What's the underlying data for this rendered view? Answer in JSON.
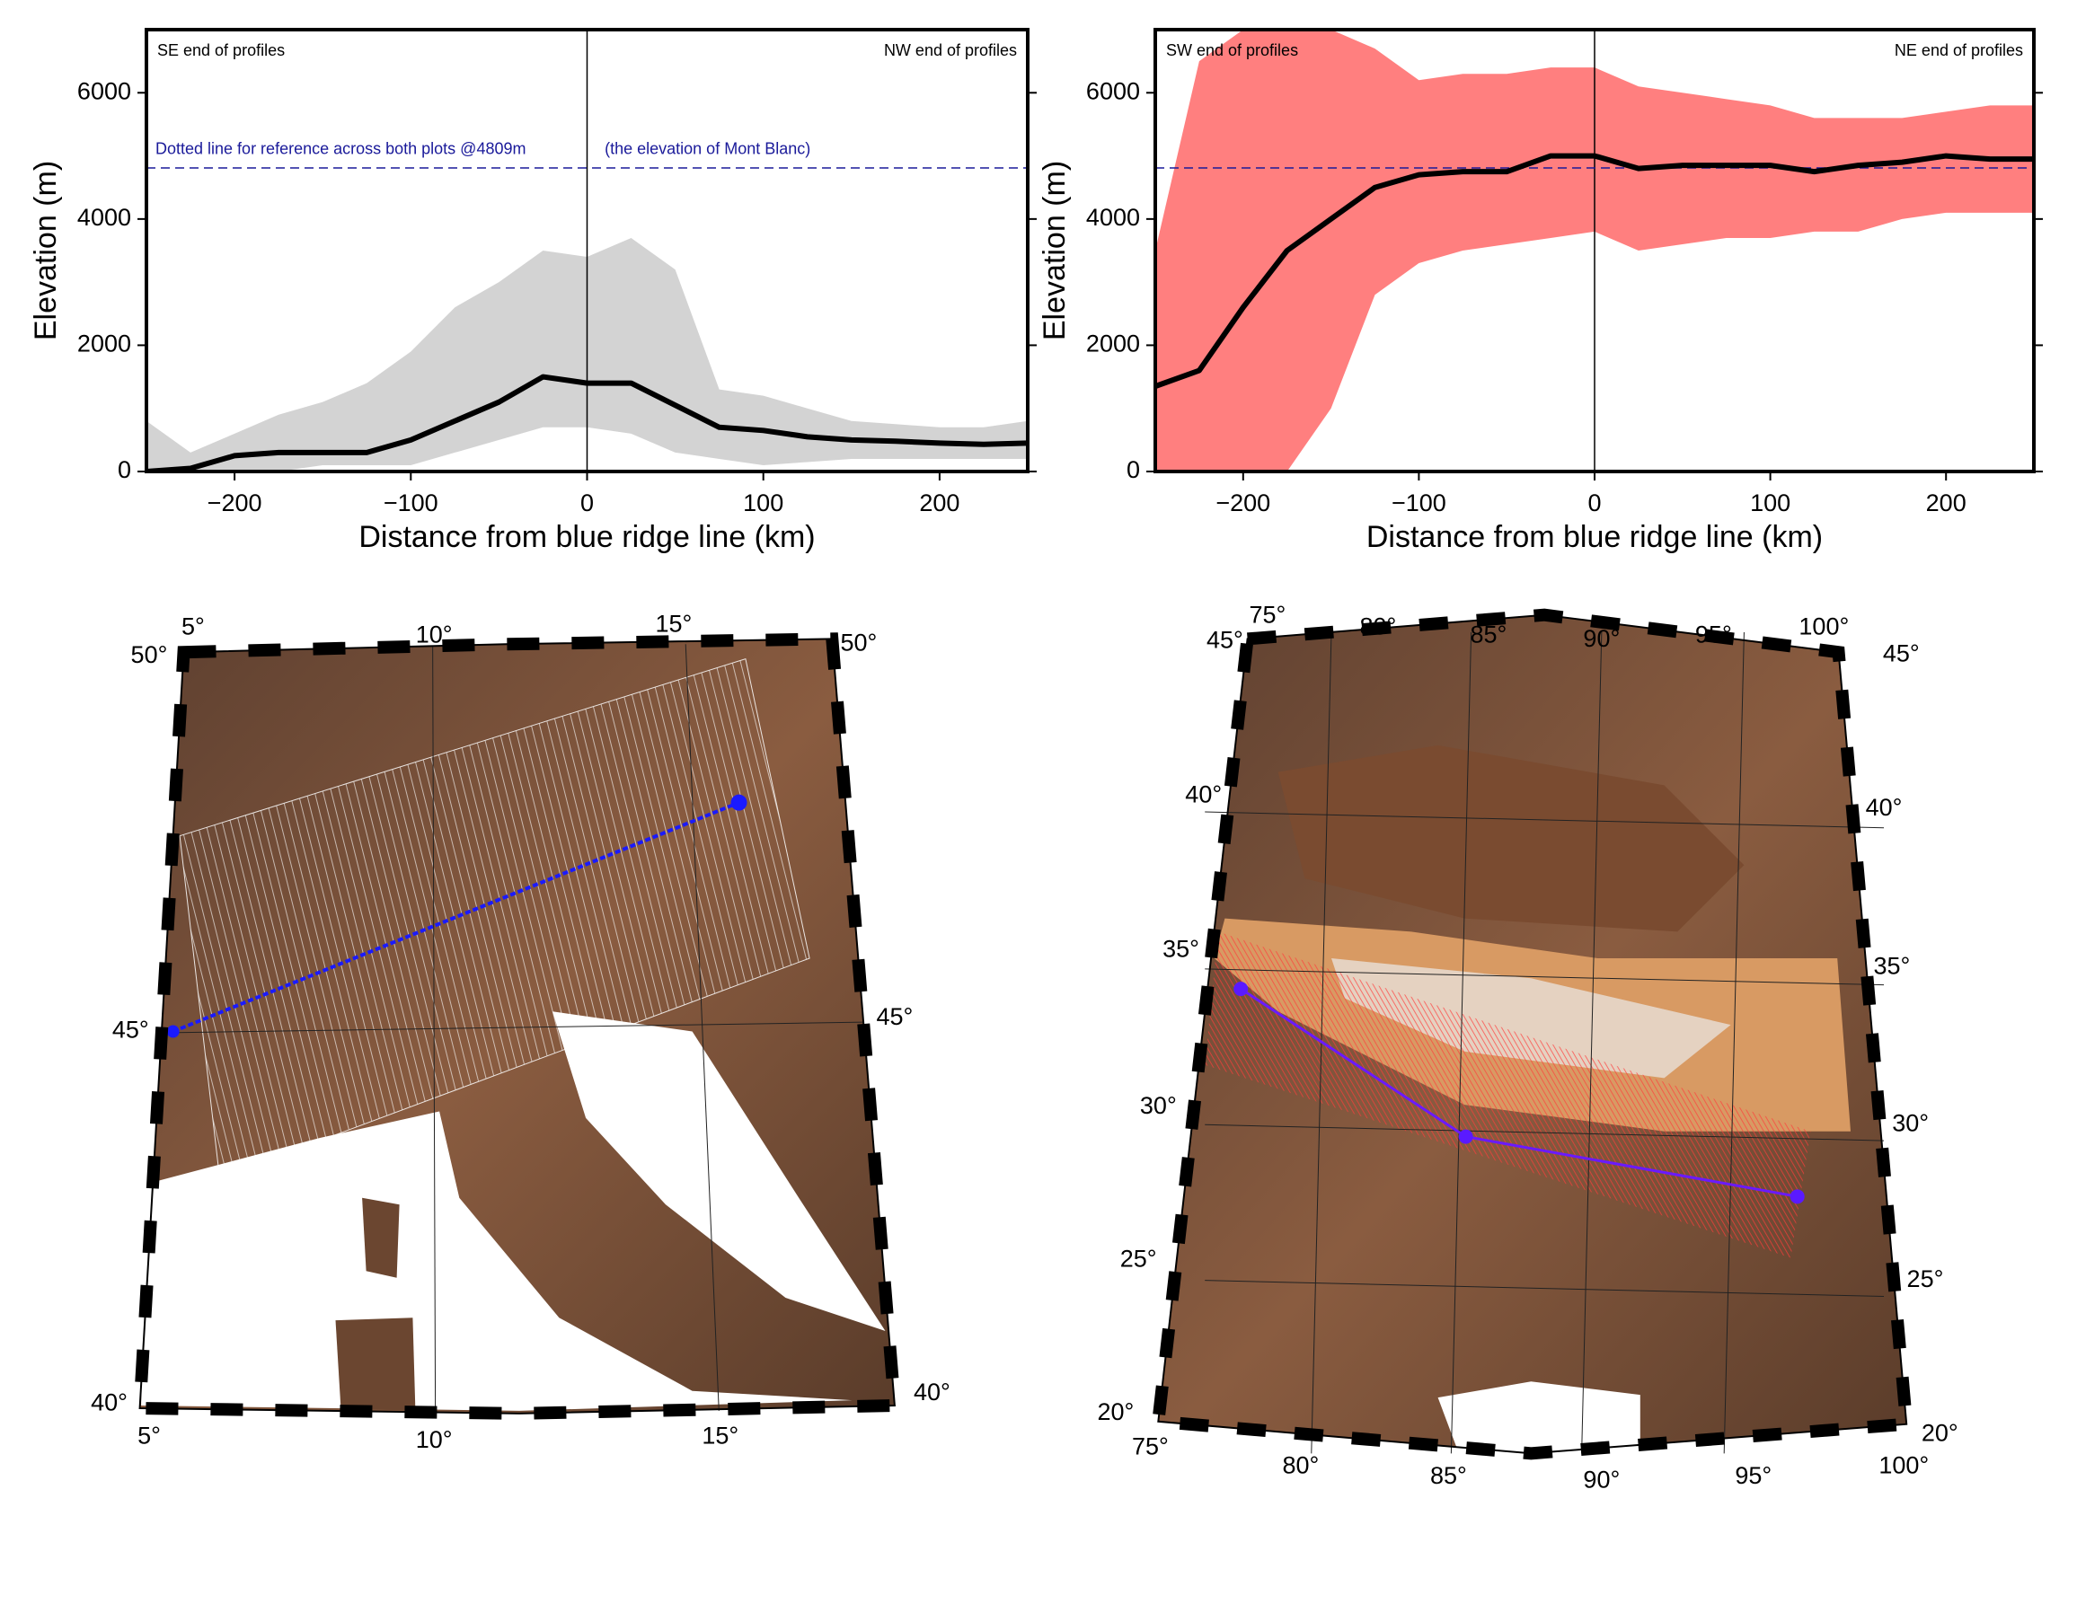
{
  "chart_data": [
    {
      "type": "band_line",
      "xlabel": "Distance from blue ridge line (km)",
      "ylabel": "Elevation (m)",
      "annotations": [
        "SE end of profiles",
        "NW end of profiles"
      ],
      "ref_labels": [
        "Dotted line for reference across both plots @4809m",
        "(the elevation of Mont Blanc)"
      ],
      "ref_line": 4809,
      "ref_color": "#1a1a9a",
      "vline": 0,
      "band_color": "#d3d3d3",
      "line_color": "#000000",
      "x": [
        -250,
        -225,
        -200,
        -175,
        -150,
        -125,
        -100,
        -75,
        -50,
        -25,
        0,
        25,
        50,
        75,
        100,
        125,
        150,
        175,
        200,
        225,
        250
      ],
      "mean": [
        0,
        50,
        250,
        300,
        300,
        300,
        500,
        800,
        1100,
        1500,
        1400,
        1400,
        1050,
        700,
        650,
        550,
        500,
        480,
        450,
        430,
        450
      ],
      "band_upper": [
        800,
        300,
        600,
        900,
        1100,
        1400,
        1900,
        2600,
        3000,
        3500,
        3400,
        3700,
        3200,
        1300,
        1200,
        1000,
        800,
        750,
        700,
        700,
        800
      ],
      "band_lower": [
        0,
        0,
        0,
        0,
        100,
        100,
        100,
        300,
        500,
        700,
        700,
        600,
        300,
        200,
        100,
        150,
        200,
        200,
        200,
        200,
        200
      ],
      "xlim": [
        -250,
        250
      ],
      "xticks": [
        {
          "value": -200,
          "label": "−200"
        },
        {
          "value": -100,
          "label": "−100"
        },
        0,
        100,
        200
      ],
      "ylim": [
        0,
        7000
      ],
      "yticks": [
        0,
        2000,
        4000,
        6000
      ]
    },
    {
      "type": "band_line",
      "xlabel": "Distance from blue ridge line (km)",
      "ylabel": "Elevation (m)",
      "annotations": [
        "SW end of profiles",
        "NE end of profiles"
      ],
      "ref_line": 4809,
      "ref_color": "#1a1a9a",
      "vline": 0,
      "band_color": "#ff7f7f",
      "line_color": "#000000",
      "x": [
        -250,
        -225,
        -200,
        -175,
        -150,
        -125,
        -100,
        -75,
        -50,
        -25,
        0,
        25,
        50,
        75,
        100,
        125,
        150,
        175,
        200,
        225,
        250
      ],
      "mean": [
        1350,
        1600,
        2600,
        3500,
        4000,
        4500,
        4700,
        4750,
        4750,
        5000,
        5000,
        4800,
        4850,
        4850,
        4850,
        4750,
        4850,
        4900,
        5000,
        4950,
        4950
      ],
      "band_upper": [
        3500,
        6500,
        7000,
        7000,
        7000,
        6700,
        6200,
        6300,
        6300,
        6400,
        6400,
        6100,
        6000,
        5900,
        5800,
        5600,
        5600,
        5600,
        5700,
        5800,
        5800
      ],
      "band_lower": [
        0,
        0,
        0,
        0,
        1000,
        2800,
        3300,
        3500,
        3600,
        3700,
        3800,
        3500,
        3600,
        3700,
        3700,
        3800,
        3800,
        4000,
        4100,
        4100,
        4100
      ],
      "xlim": [
        -250,
        250
      ],
      "xticks": [
        {
          "value": -200,
          "label": "−200"
        },
        {
          "value": -100,
          "label": "−100"
        },
        0,
        100,
        200
      ],
      "ylim": [
        0,
        7000
      ],
      "yticks": [
        0,
        2000,
        4000,
        6000
      ]
    }
  ],
  "maps": [
    {
      "labels": [
        "5°",
        "10°",
        "15°",
        "50°",
        "50°",
        "45°",
        "45°",
        "40°",
        "40°",
        "5°",
        "10°",
        "15°"
      ]
    },
    {
      "labels": [
        "75°",
        "80°",
        "85°",
        "90°",
        "95°",
        "100°",
        "45°",
        "40°",
        "35°",
        "30°",
        "25°",
        "20°",
        "45°",
        "40°",
        "35°",
        "30°",
        "25°",
        "20°",
        "75°",
        "80°",
        "85°",
        "90°",
        "95°",
        "100°"
      ]
    }
  ]
}
